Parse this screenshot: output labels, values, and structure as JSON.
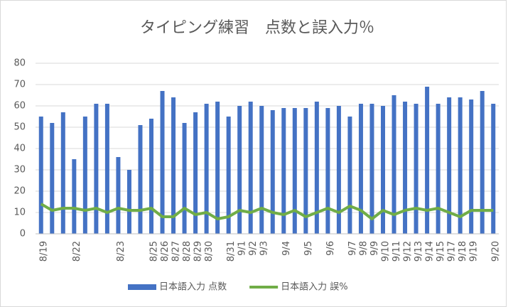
{
  "chart_data": {
    "type": "bar_line",
    "title": "タイピング練習　点数と誤入力％",
    "categories": [
      "8/19",
      null,
      null,
      "8/22",
      null,
      null,
      null,
      "8/23",
      null,
      null,
      "8/25",
      "8/26",
      "8/27",
      "8/28",
      "8/29",
      "8/30",
      null,
      "8/31",
      "9/1",
      "9/2",
      "9/3",
      null,
      "9/4",
      null,
      "9/5",
      null,
      "9/6",
      null,
      "9/7",
      "9/8",
      "9/9",
      "9/10",
      "9/11",
      "9/12",
      "9/13",
      "9/14",
      "9/15",
      "9/17",
      "9/18",
      "9/19",
      null,
      "9/20"
    ],
    "series": [
      {
        "name": "日本語入力 点数",
        "type": "bar",
        "color": "#4472c4",
        "values": [
          55,
          52,
          57,
          35,
          55,
          61,
          61,
          36,
          30,
          51,
          54,
          67,
          64,
          52,
          57,
          61,
          62,
          55,
          60,
          62,
          60,
          58,
          59,
          59,
          59,
          62,
          59,
          60,
          55,
          61,
          61,
          60,
          65,
          62,
          61,
          69,
          61,
          64,
          64,
          63,
          67,
          61
        ]
      },
      {
        "name": "日本語入力 誤%",
        "type": "line",
        "color": "#70ad47",
        "values": [
          14,
          11,
          12,
          12,
          11,
          12,
          10,
          12,
          11,
          11,
          12,
          8,
          8,
          12,
          9,
          10,
          7,
          8,
          11,
          10,
          12,
          10,
          9,
          11,
          8,
          10,
          12,
          10,
          13,
          11,
          7,
          11,
          9,
          11,
          12,
          11,
          12,
          10,
          8,
          11,
          11,
          11
        ]
      }
    ],
    "ylim": [
      0,
      80
    ],
    "yticks": [
      0,
      10,
      20,
      30,
      40,
      50,
      60,
      70,
      80
    ],
    "grid": true,
    "legend": "bottom"
  }
}
